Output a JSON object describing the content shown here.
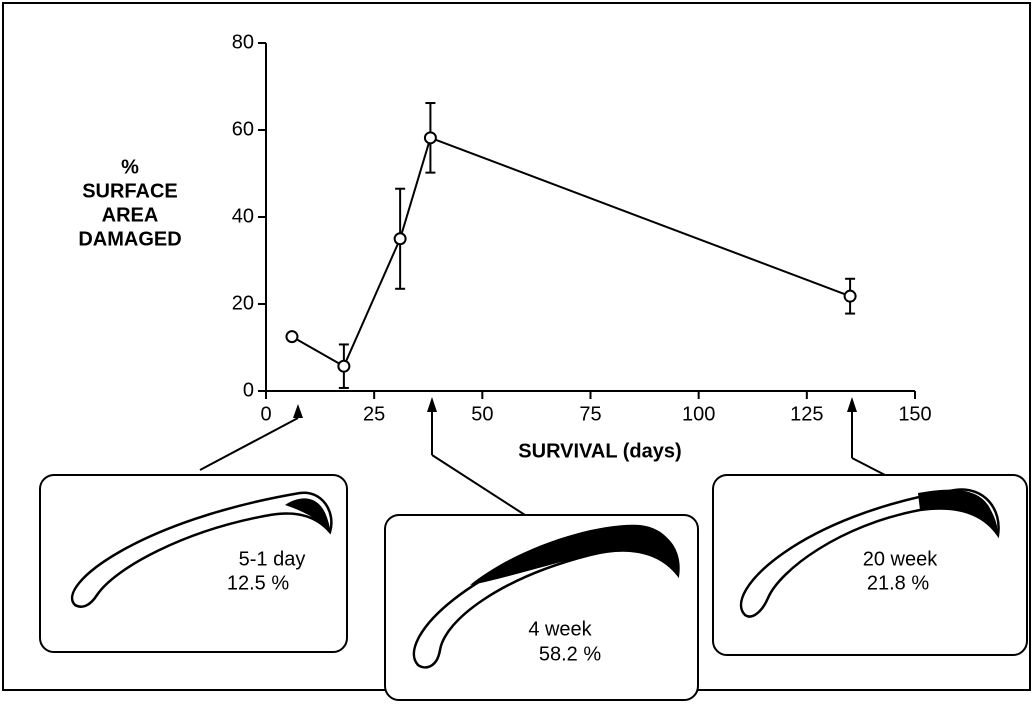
{
  "chart_data": {
    "type": "line",
    "ylabel": [
      "%",
      "SURFACE",
      "AREA",
      "DAMAGED"
    ],
    "xlabel": "SURVIVAL (days)",
    "x": [
      6,
      18,
      31,
      38,
      135
    ],
    "values": [
      12.5,
      5.7,
      35,
      58.2,
      21.8
    ],
    "errors": [
      null,
      5,
      11.5,
      8,
      4
    ],
    "color": "#000000",
    "xlim": [
      0,
      150
    ],
    "xticks": [
      0,
      25,
      50,
      75,
      100,
      125,
      150
    ],
    "ylim": [
      0,
      80
    ],
    "yticks": [
      0,
      20,
      40,
      60,
      80
    ],
    "annotations": [
      {
        "text": "5-1 day",
        "value": "12.5 %"
      },
      {
        "text": "4 week",
        "value": "58.2 %"
      },
      {
        "text": "20 week",
        "value": "21.8 %"
      }
    ]
  }
}
